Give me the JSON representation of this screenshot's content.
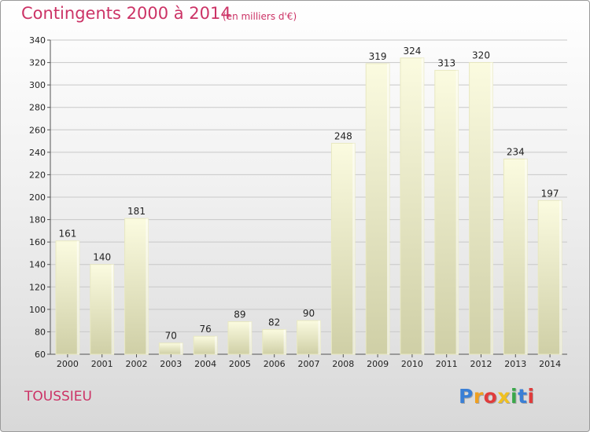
{
  "chart_data": {
    "type": "bar",
    "title": "Contingents 2000 à 2014",
    "subtitle": "(en milliers d'€)",
    "categories": [
      "2000",
      "2001",
      "2002",
      "2003",
      "2004",
      "2005",
      "2006",
      "2007",
      "2008",
      "2009",
      "2010",
      "2011",
      "2012",
      "2013",
      "2014"
    ],
    "values": [
      161,
      140,
      181,
      70,
      76,
      89,
      82,
      90,
      248,
      319,
      324,
      313,
      320,
      234,
      197
    ],
    "ylim": [
      60,
      340
    ],
    "yticks": [
      60,
      80,
      100,
      120,
      140,
      160,
      180,
      200,
      220,
      240,
      260,
      280,
      300,
      320,
      340
    ],
    "xlabel": "",
    "ylabel": "",
    "grid": true,
    "bar_color": "#f5f5c8",
    "bar_shade": "#cfcfa6"
  },
  "footer": {
    "place_name": "TOUSSIEU",
    "logo_letters": [
      {
        "ch": "P",
        "color": "#3a7fd5"
      },
      {
        "ch": "r",
        "color": "#f0a020"
      },
      {
        "ch": "o",
        "color": "#e03c3c"
      },
      {
        "ch": "x",
        "color": "#f0c020"
      },
      {
        "ch": "i",
        "color": "#3aa84a"
      },
      {
        "ch": "t",
        "color": "#3a7fd5"
      },
      {
        "ch": "i",
        "color": "#e03c3c"
      }
    ]
  },
  "colors": {
    "accent": "#cc3366"
  }
}
